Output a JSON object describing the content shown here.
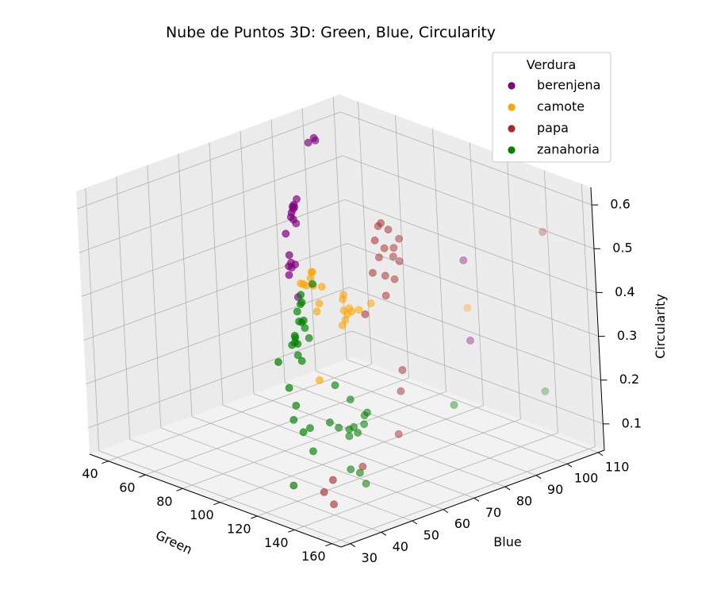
{
  "chart_data": {
    "type": "scatter",
    "projection": "3d",
    "title": "Nube de Puntos 3D: Green, Blue, Circularity",
    "xlabel": "Green",
    "ylabel": "Blue",
    "zlabel": "Circularity",
    "xlim": [
      30,
      165
    ],
    "ylim": [
      27,
      112
    ],
    "zlim": [
      0.04,
      0.64
    ],
    "xticks": [
      "40",
      "60",
      "80",
      "100",
      "120",
      "140",
      "160"
    ],
    "yticks": [
      "30",
      "40",
      "50",
      "60",
      "70",
      "80",
      "90",
      "100",
      "110"
    ],
    "zticks": [
      "0.1",
      "0.2",
      "0.3",
      "0.4",
      "0.5",
      "0.6"
    ],
    "grid": true,
    "legend": {
      "title": "Verdura",
      "position": "top-right"
    },
    "series": [
      {
        "name": "berenjena",
        "color": "#800080",
        "points": [
          [
            31,
            103,
            0.56
          ],
          [
            32,
            102,
            0.57
          ],
          [
            34,
            99,
            0.57
          ],
          [
            33,
            95,
            0.45
          ],
          [
            33,
            94,
            0.44
          ],
          [
            34,
            93,
            0.44
          ],
          [
            35,
            93,
            0.44
          ],
          [
            36,
            92,
            0.44
          ],
          [
            35,
            92,
            0.43
          ],
          [
            38,
            90,
            0.43
          ],
          [
            36,
            90,
            0.34
          ],
          [
            42,
            87,
            0.34
          ],
          [
            44,
            85,
            0.32
          ],
          [
            52,
            80,
            0.44
          ],
          [
            60,
            78,
            0.49
          ],
          [
            70,
            73,
            0.51
          ],
          [
            70,
            70,
            0.42
          ],
          [
            75,
            68,
            0.43
          ],
          [
            77,
            68,
            0.44
          ],
          [
            95,
            58,
            0.42
          ],
          [
            145,
            82,
            0.52
          ],
          [
            150,
            80,
            0.35
          ]
        ]
      },
      {
        "name": "camote",
        "color": "#FFA500",
        "points": [
          [
            100,
            60,
            0.48
          ],
          [
            103,
            58,
            0.49
          ],
          [
            104,
            57,
            0.48
          ],
          [
            102,
            55,
            0.47
          ],
          [
            105,
            55,
            0.47
          ],
          [
            107,
            56,
            0.47
          ],
          [
            100,
            57,
            0.46
          ],
          [
            110,
            57,
            0.47
          ],
          [
            115,
            53,
            0.45
          ],
          [
            117,
            51,
            0.44
          ],
          [
            125,
            55,
            0.48
          ],
          [
            128,
            53,
            0.48
          ],
          [
            130,
            52,
            0.46
          ],
          [
            134,
            50,
            0.45
          ],
          [
            133,
            52,
            0.47
          ],
          [
            136,
            51,
            0.47
          ],
          [
            134,
            49,
            0.44
          ],
          [
            137,
            49,
            0.47
          ],
          [
            140,
            51,
            0.48
          ],
          [
            145,
            52,
            0.5
          ],
          [
            132,
            42,
            0.33
          ],
          [
            158,
            75,
            0.45
          ]
        ]
      },
      {
        "name": "papa",
        "color": "#A52A2A",
        "points": [
          [
            122,
            72,
            0.58
          ],
          [
            125,
            68,
            0.61
          ],
          [
            120,
            70,
            0.59
          ],
          [
            123,
            67,
            0.57
          ],
          [
            128,
            67,
            0.56
          ],
          [
            130,
            64,
            0.55
          ],
          [
            133,
            60,
            0.53
          ],
          [
            138,
            66,
            0.6
          ],
          [
            140,
            63,
            0.59
          ],
          [
            143,
            61,
            0.58
          ],
          [
            145,
            57,
            0.55
          ],
          [
            148,
            60,
            0.58
          ],
          [
            150,
            57,
            0.55
          ],
          [
            150,
            54,
            0.52
          ],
          [
            145,
            50,
            0.48
          ],
          [
            165,
            96,
            0.58
          ],
          [
            150,
            58,
            0.34
          ],
          [
            152,
            56,
            0.3
          ],
          [
            160,
            50,
            0.23
          ],
          [
            148,
            45,
            0.15
          ],
          [
            140,
            40,
            0.12
          ],
          [
            140,
            37,
            0.1
          ],
          [
            145,
            37,
            0.08
          ]
        ]
      },
      {
        "name": "zanahoria",
        "color": "#008000",
        "points": [
          [
            60,
            83,
            0.33
          ],
          [
            55,
            82,
            0.3
          ],
          [
            64,
            77,
            0.31
          ],
          [
            65,
            76,
            0.31
          ],
          [
            63,
            76,
            0.29
          ],
          [
            68,
            75,
            0.28
          ],
          [
            72,
            72,
            0.29
          ],
          [
            75,
            68,
            0.27
          ],
          [
            73,
            68,
            0.25
          ],
          [
            72,
            64,
            0.22
          ],
          [
            80,
            65,
            0.29
          ],
          [
            85,
            62,
            0.29
          ],
          [
            90,
            60,
            0.3
          ],
          [
            95,
            57,
            0.29
          ],
          [
            97,
            57,
            0.28
          ],
          [
            105,
            55,
            0.35
          ],
          [
            100,
            55,
            0.38
          ],
          [
            103,
            55,
            0.37
          ],
          [
            110,
            45,
            0.27
          ],
          [
            115,
            44,
            0.24
          ],
          [
            115,
            43,
            0.21
          ],
          [
            120,
            43,
            0.19
          ],
          [
            122,
            44,
            0.2
          ],
          [
            130,
            40,
            0.17
          ],
          [
            130,
            48,
            0.3
          ],
          [
            138,
            48,
            0.28
          ],
          [
            133,
            44,
            0.23
          ],
          [
            136,
            45,
            0.22
          ],
          [
            140,
            46,
            0.22
          ],
          [
            147,
            47,
            0.26
          ],
          [
            146,
            44,
            0.24
          ],
          [
            145,
            43,
            0.22
          ],
          [
            148,
            44,
            0.23
          ],
          [
            150,
            45,
            0.25
          ],
          [
            152,
            45,
            0.28
          ],
          [
            150,
            40,
            0.16
          ],
          [
            155,
            40,
            0.16
          ],
          [
            158,
            40,
            0.14
          ],
          [
            160,
            68,
            0.25
          ],
          [
            155,
            100,
            0.19
          ],
          [
            127,
            35,
            0.1
          ]
        ]
      }
    ]
  }
}
